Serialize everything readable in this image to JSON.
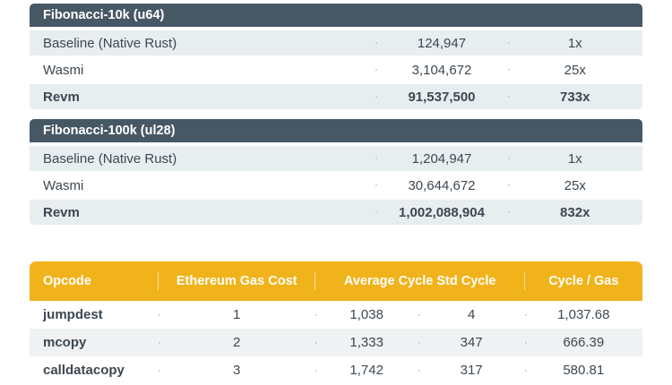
{
  "colors": {
    "slate": "#475865",
    "amber": "#f1b31b",
    "stripe-blue": "#e8edf0",
    "stripe-gray": "#eff1f2",
    "ink": "#3d4852"
  },
  "benchmark_tables": [
    {
      "title": "Fibonacci-10k (u64)",
      "rows": [
        {
          "name": "Baseline (Native Rust)",
          "cycles": "124,947",
          "multiplier": "1x"
        },
        {
          "name": "Wasmi",
          "cycles": "3,104,672",
          "multiplier": "25x"
        },
        {
          "name": "Revm",
          "cycles": "91,537,500",
          "multiplier": "733x"
        }
      ]
    },
    {
      "title": "Fibonacci-100k (ul28)",
      "rows": [
        {
          "name": "Baseline (Native Rust)",
          "cycles": "1,204,947",
          "multiplier": "1x"
        },
        {
          "name": "Wasmi",
          "cycles": "30,644,672",
          "multiplier": "25x"
        },
        {
          "name": "Revm",
          "cycles": "1,002,088,904",
          "multiplier": "832x"
        }
      ]
    }
  ],
  "opcode_table": {
    "headers": {
      "opcode": "Opcode",
      "gas_cost": "Ethereum Gas Cost",
      "avg_std": "Average Cycle Std Cycle",
      "cycle_per_gas": "Cycle / Gas"
    },
    "rows": [
      {
        "opcode": "jumpdest",
        "gas_cost": "1",
        "average_cycle": "1,038",
        "std_cycle": "4",
        "cycle_per_gas": "1,037.68"
      },
      {
        "opcode": "mcopy",
        "gas_cost": "2",
        "average_cycle": "1,333",
        "std_cycle": "347",
        "cycle_per_gas": "666.39"
      },
      {
        "opcode": "calldatacopy",
        "gas_cost": "3",
        "average_cycle": "1,742",
        "std_cycle": "317",
        "cycle_per_gas": "580.81"
      }
    ]
  }
}
